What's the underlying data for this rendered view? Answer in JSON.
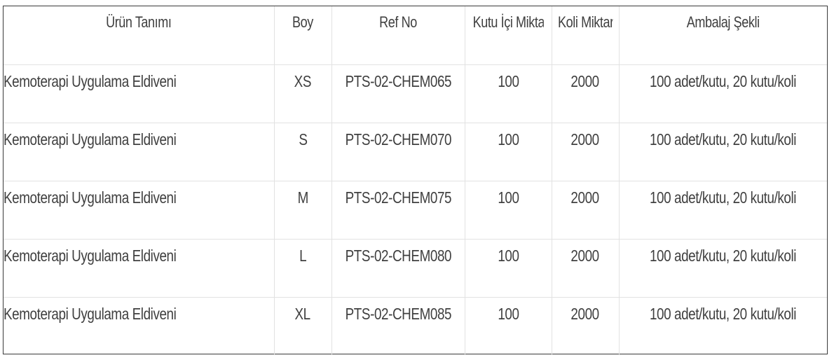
{
  "table": {
    "headers": [
      "Ürün Tanımı",
      "Boy",
      "Ref No",
      "Kutu İçi Miktar",
      "Koli Miktar",
      "Ambalaj Şekli"
    ],
    "rows": [
      [
        "Kemoterapi Uygulama Eldiveni",
        "XS",
        "PTS-02-CHEM065",
        "100",
        "2000",
        "100 adet/kutu, 20 kutu/koli"
      ],
      [
        "Kemoterapi Uygulama Eldiveni",
        "S",
        "PTS-02-CHEM070",
        "100",
        "2000",
        "100 adet/kutu, 20 kutu/koli"
      ],
      [
        "Kemoterapi Uygulama Eldiveni",
        "M",
        "PTS-02-CHEM075",
        "100",
        "2000",
        "100 adet/kutu, 20 kutu/koli"
      ],
      [
        "Kemoterapi Uygulama Eldiveni",
        "L",
        "PTS-02-CHEM080",
        "100",
        "2000",
        "100 adet/kutu, 20 kutu/koli"
      ],
      [
        "Kemoterapi Uygulama Eldiveni",
        "XL",
        "PTS-02-CHEM085",
        "100",
        "2000",
        "100 adet/kutu, 20 kutu/koli"
      ]
    ]
  },
  "colors": {
    "text": "#3f3f3f",
    "outer_border": "#3a3a3a",
    "grid_line": "#e2e2e2",
    "background": "#ffffff"
  }
}
